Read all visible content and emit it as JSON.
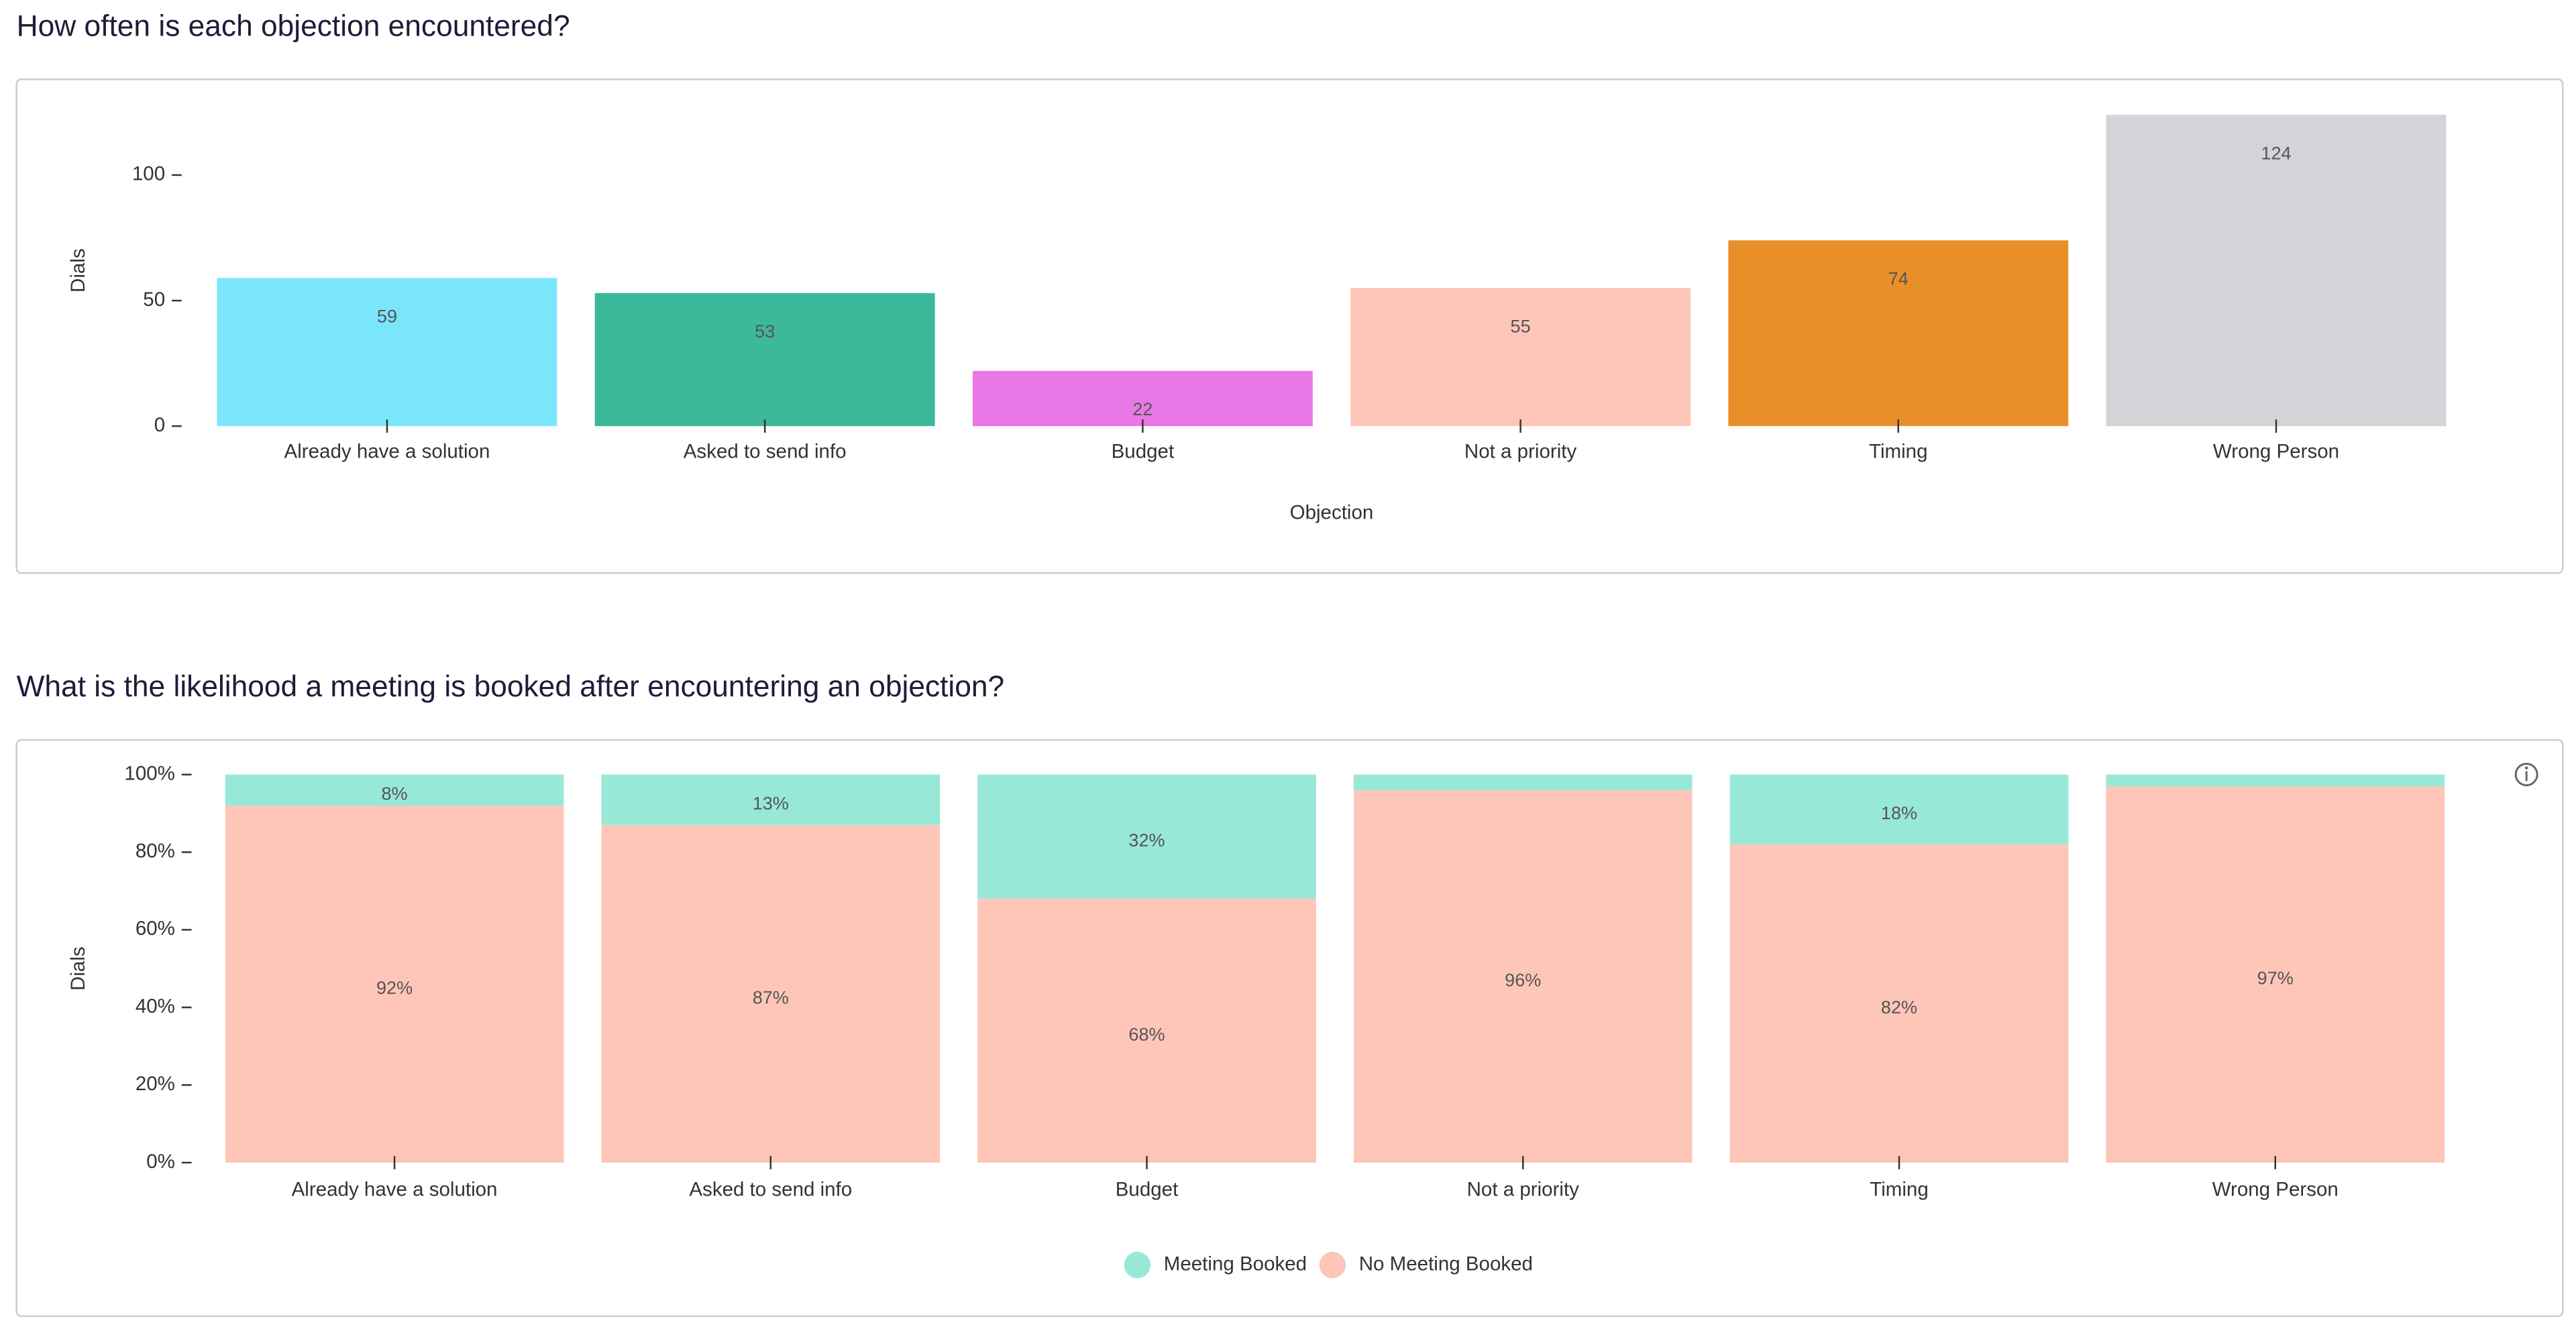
{
  "chart_data": [
    {
      "type": "bar",
      "title": "How often is each objection encountered?",
      "y_label": "Dials",
      "x_label": "Objection",
      "categories": [
        "Already have a solution",
        "Asked to send info",
        "Budget",
        "Not a priority",
        "Timing",
        "Wrong Person"
      ],
      "values": [
        59,
        53,
        22,
        55,
        74,
        124
      ],
      "colors": [
        "#7ae6fc",
        "#3cb89a",
        "#e977e6",
        "#fec6b8",
        "#e98f2a",
        "#d4d3d8"
      ],
      "ylim": [
        0,
        124
      ],
      "yticks": [
        0,
        50,
        100
      ],
      "grid": false
    },
    {
      "type": "stacked_bar",
      "title": "What is the likelihood a meeting is booked after encountering an objection?",
      "y_label": "Dials",
      "categories": [
        "Already have a solution",
        "Asked to send info",
        "Budget",
        "Not a priority",
        "Timing",
        "Wrong Person"
      ],
      "series": [
        {
          "name": "No Meeting Booked",
          "color": "#fec6b8",
          "values": [
            92,
            87,
            68,
            96,
            82,
            97
          ],
          "value_labels": [
            "92%",
            "87%",
            "68%",
            "96%",
            "82%",
            "97%"
          ]
        },
        {
          "name": "Meeting Booked",
          "color": "#98e8d8",
          "values": [
            8,
            13,
            32,
            4,
            18,
            3
          ],
          "value_labels": [
            "8%",
            "13%",
            "32%",
            null,
            "18%",
            null
          ]
        }
      ],
      "ylim": [
        0,
        100
      ],
      "yticks": [
        {
          "value": 0,
          "label": "0%"
        },
        {
          "value": 20,
          "label": "20%"
        },
        {
          "value": 40,
          "label": "40%"
        },
        {
          "value": 60,
          "label": "60%"
        },
        {
          "value": 80,
          "label": "80%"
        },
        {
          "value": 100,
          "label": "100%"
        }
      ],
      "grid": false,
      "legend": "bottom"
    }
  ]
}
